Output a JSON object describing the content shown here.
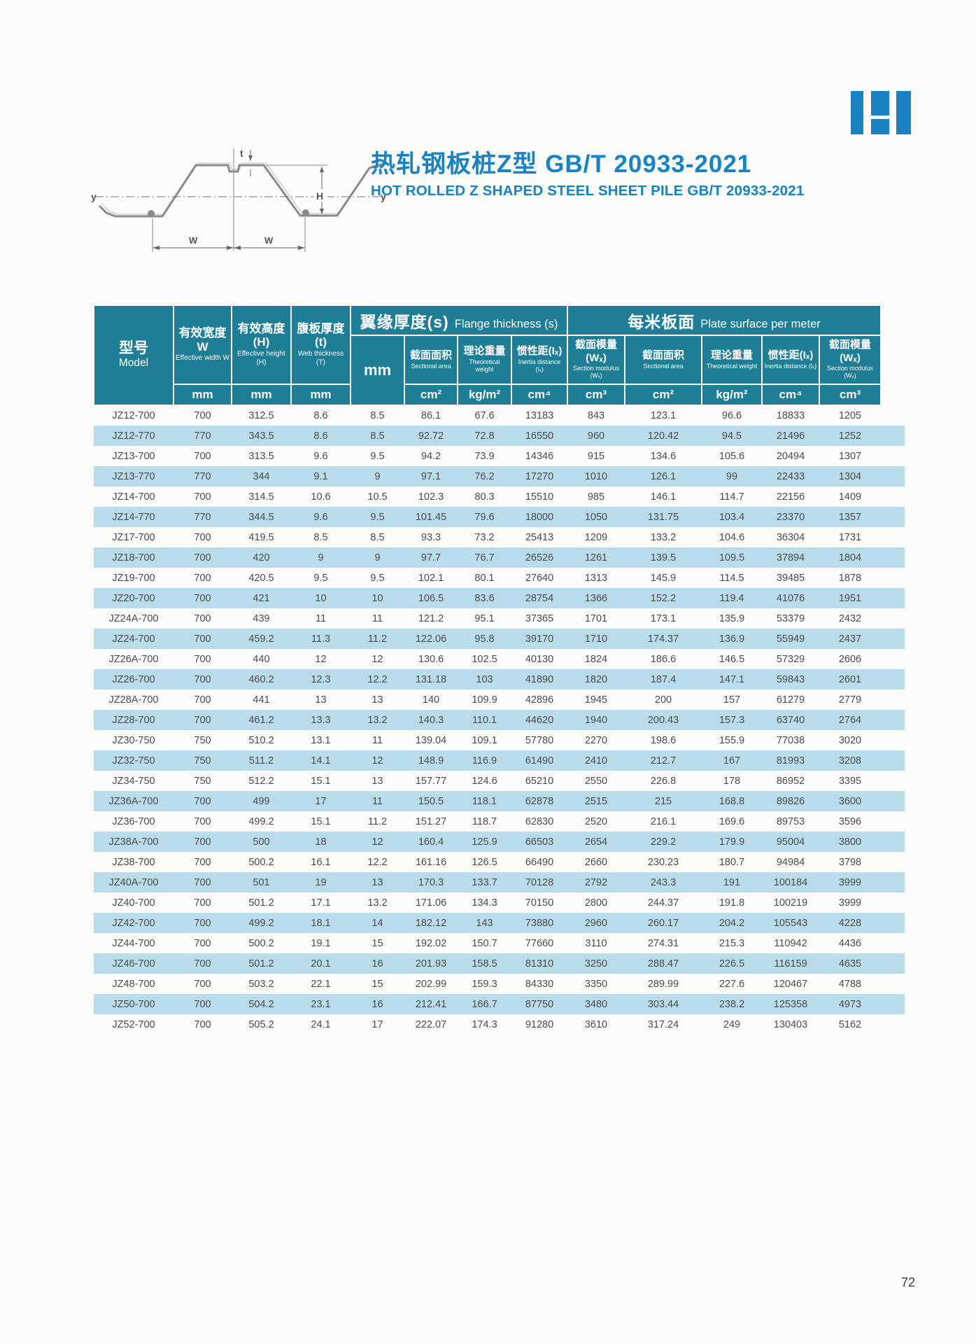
{
  "colors": {
    "teal": "#1d7e96",
    "stripe": "#b9dcea",
    "accent": "#1583c5",
    "logo": "#1a82c2"
  },
  "page": {
    "number": "72"
  },
  "title": {
    "zh": "热轧钢板桩Z型 GB/T 20933-2021",
    "en": "HOT ROLLED Z SHAPED STEEL SHEET PILE GB/T 20933-2021"
  },
  "diagram": {
    "y_left": "y",
    "y_right": "y",
    "t": "t",
    "H": "H",
    "W1": "W",
    "W2": "W"
  },
  "table": {
    "header": {
      "model": {
        "zh": "型号",
        "en": "Model"
      },
      "width": {
        "zh": "有效宽度W",
        "en": "Effective width W",
        "unit": "mm"
      },
      "height": {
        "zh": "有效高度(H)",
        "en": "Effective height (H)",
        "unit": "mm"
      },
      "web": {
        "zh": "腹板厚度(t)",
        "en": "Web thickness (T)",
        "unit": "mm"
      },
      "flange_group": {
        "zh": "翼缘厚度(s)",
        "en": "Flange thickness (s)",
        "mm": "mm"
      },
      "plate_group": {
        "zh": "每米板面",
        "en": "Plate surface per meter"
      },
      "subcols": [
        {
          "zh": "截面面积",
          "en": "Sectional area",
          "unit": "cm²"
        },
        {
          "zh": "理论重量",
          "en": "Theoretical weight",
          "unit": "kg/m²"
        },
        {
          "zh": "惯性距(Iₓ)",
          "en": "Inertia distance (Iₓ)",
          "unit": "cm⁴"
        },
        {
          "zh": "截面模量(Wₓ)",
          "en": "Section modulus (Wₓ)",
          "unit": "cm³"
        },
        {
          "zh": "截面面积",
          "en": "Sectional area",
          "unit": "cm²"
        },
        {
          "zh": "理论重量",
          "en": "Theoretical weight",
          "unit": "kg/m²"
        },
        {
          "zh": "惯性距(Iₓ)",
          "en": "Inertia distance (Iₓ)",
          "unit": "cm⁴"
        },
        {
          "zh": "截面模量(Wₓ)",
          "en": "Section modulus (Wₓ)",
          "unit": "cm³"
        }
      ]
    },
    "rows": [
      [
        "JZ12-700",
        "700",
        "312.5",
        "8.6",
        "8.5",
        "86.1",
        "67.6",
        "13183",
        "843",
        "123.1",
        "96.6",
        "18833",
        "1205"
      ],
      [
        "JZ12-770",
        "770",
        "343.5",
        "8.6",
        "8.5",
        "92.72",
        "72.8",
        "16550",
        "960",
        "120.42",
        "94.5",
        "21496",
        "1252"
      ],
      [
        "JZ13-700",
        "700",
        "313.5",
        "9.6",
        "9.5",
        "94.2",
        "73.9",
        "14346",
        "915",
        "134.6",
        "105.6",
        "20494",
        "1307"
      ],
      [
        "JZ13-770",
        "770",
        "344",
        "9.1",
        "9",
        "97.1",
        "76.2",
        "17270",
        "1010",
        "126.1",
        "99",
        "22433",
        "1304"
      ],
      [
        "JZ14-700",
        "700",
        "314.5",
        "10.6",
        "10.5",
        "102.3",
        "80.3",
        "15510",
        "985",
        "146.1",
        "114.7",
        "22156",
        "1409"
      ],
      [
        "JZ14-770",
        "770",
        "344.5",
        "9.6",
        "9.5",
        "101.45",
        "79.6",
        "18000",
        "1050",
        "131.75",
        "103.4",
        "23370",
        "1357"
      ],
      [
        "JZ17-700",
        "700",
        "419.5",
        "8.5",
        "8.5",
        "93.3",
        "73.2",
        "25413",
        "1209",
        "133.2",
        "104.6",
        "36304",
        "1731"
      ],
      [
        "JZ18-700",
        "700",
        "420",
        "9",
        "9",
        "97.7",
        "76.7",
        "26526",
        "1261",
        "139.5",
        "109.5",
        "37894",
        "1804"
      ],
      [
        "JZ19-700",
        "700",
        "420.5",
        "9.5",
        "9.5",
        "102.1",
        "80.1",
        "27640",
        "1313",
        "145.9",
        "114.5",
        "39485",
        "1878"
      ],
      [
        "JZ20-700",
        "700",
        "421",
        "10",
        "10",
        "106.5",
        "83.6",
        "28754",
        "1366",
        "152.2",
        "119.4",
        "41076",
        "1951"
      ],
      [
        "JZ24A-700",
        "700",
        "439",
        "11",
        "11",
        "121.2",
        "95.1",
        "37365",
        "1701",
        "173.1",
        "135.9",
        "53379",
        "2432"
      ],
      [
        "JZ24-700",
        "700",
        "459.2",
        "11.3",
        "11.2",
        "122.06",
        "95.8",
        "39170",
        "1710",
        "174.37",
        "136.9",
        "55949",
        "2437"
      ],
      [
        "JZ26A-700",
        "700",
        "440",
        "12",
        "12",
        "130.6",
        "102.5",
        "40130",
        "1824",
        "186.6",
        "146.5",
        "57329",
        "2606"
      ],
      [
        "JZ26-700",
        "700",
        "460.2",
        "12.3",
        "12.2",
        "131.18",
        "103",
        "41890",
        "1820",
        "187.4",
        "147.1",
        "59843",
        "2601"
      ],
      [
        "JZ28A-700",
        "700",
        "441",
        "13",
        "13",
        "140",
        "109.9",
        "42896",
        "1945",
        "200",
        "157",
        "61279",
        "2779"
      ],
      [
        "JZ28-700",
        "700",
        "461.2",
        "13.3",
        "13.2",
        "140.3",
        "110.1",
        "44620",
        "1940",
        "200.43",
        "157.3",
        "63740",
        "2764"
      ],
      [
        "JZ30-750",
        "750",
        "510.2",
        "13.1",
        "11",
        "139.04",
        "109.1",
        "57780",
        "2270",
        "198.6",
        "155.9",
        "77038",
        "3020"
      ],
      [
        "JZ32-750",
        "750",
        "511.2",
        "14.1",
        "12",
        "148.9",
        "116.9",
        "61490",
        "2410",
        "212.7",
        "167",
        "81993",
        "3208"
      ],
      [
        "JZ34-750",
        "750",
        "512.2",
        "15.1",
        "13",
        "157.77",
        "124.6",
        "65210",
        "2550",
        "226.8",
        "178",
        "86952",
        "3395"
      ],
      [
        "JZ36A-700",
        "700",
        "499",
        "17",
        "11",
        "150.5",
        "118.1",
        "62878",
        "2515",
        "215",
        "168.8",
        "89826",
        "3600"
      ],
      [
        "JZ36-700",
        "700",
        "499.2",
        "15.1",
        "11.2",
        "151.27",
        "118.7",
        "62830",
        "2520",
        "216.1",
        "169.6",
        "89753",
        "3596"
      ],
      [
        "JZ38A-700",
        "700",
        "500",
        "18",
        "12",
        "160.4",
        "125.9",
        "66503",
        "2654",
        "229.2",
        "179.9",
        "95004",
        "3800"
      ],
      [
        "JZ38-700",
        "700",
        "500.2",
        "16.1",
        "12.2",
        "161.16",
        "126.5",
        "66490",
        "2660",
        "230.23",
        "180.7",
        "94984",
        "3798"
      ],
      [
        "JZ40A-700",
        "700",
        "501",
        "19",
        "13",
        "170.3",
        "133.7",
        "70128",
        "2792",
        "243.3",
        "191",
        "100184",
        "3999"
      ],
      [
        "JZ40-700",
        "700",
        "501.2",
        "17.1",
        "13.2",
        "171.06",
        "134.3",
        "70150",
        "2800",
        "244.37",
        "191.8",
        "100219",
        "3999"
      ],
      [
        "JZ42-700",
        "700",
        "499.2",
        "18.1",
        "14",
        "182.12",
        "143",
        "73880",
        "2960",
        "260.17",
        "204.2",
        "105543",
        "4228"
      ],
      [
        "JZ44-700",
        "700",
        "500.2",
        "19.1",
        "15",
        "192.02",
        "150.7",
        "77660",
        "3110",
        "274.31",
        "215.3",
        "110942",
        "4436"
      ],
      [
        "JZ46-700",
        "700",
        "501.2",
        "20.1",
        "16",
        "201.93",
        "158.5",
        "81310",
        "3250",
        "288.47",
        "226.5",
        "116159",
        "4635"
      ],
      [
        "JZ48-700",
        "700",
        "503.2",
        "22.1",
        "15",
        "202.99",
        "159.3",
        "84330",
        "3350",
        "289.99",
        "227.6",
        "120467",
        "4788"
      ],
      [
        "JZ50-700",
        "700",
        "504.2",
        "23.1",
        "16",
        "212.41",
        "166.7",
        "87750",
        "3480",
        "303.44",
        "238.2",
        "125358",
        "4973"
      ],
      [
        "JZ52-700",
        "700",
        "505.2",
        "24.1",
        "17",
        "222.07",
        "174.3",
        "91280",
        "3610",
        "317.24",
        "249",
        "130403",
        "5162"
      ]
    ]
  }
}
